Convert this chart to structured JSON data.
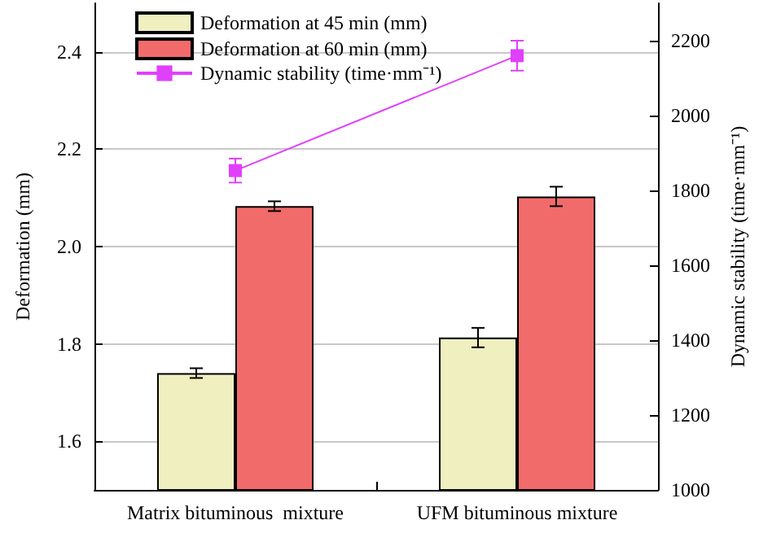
{
  "chart_data": {
    "type": "bar",
    "categories": [
      "Matrix bituminous  mixture",
      "UFM bituminous mixture"
    ],
    "series": [
      {
        "name": "Deformation at 45 min (mm)",
        "color": "#f0efc0",
        "values": [
          1.74,
          1.813
        ],
        "errors": [
          0.01,
          0.02
        ]
      },
      {
        "name": "Deformation at 60 min (mm)",
        "color": "#f26b6b",
        "values": [
          2.083,
          2.103
        ],
        "errors": [
          0.01,
          0.02
        ]
      },
      {
        "name": "Dynamic stability (time·mm⁻¹)",
        "type": "line",
        "axis": "y2",
        "color": "#e040fb",
        "marker": "square",
        "values": [
          1853,
          2160
        ],
        "errors": [
          32,
          40
        ]
      }
    ],
    "ylabel": "Deformation (mm)",
    "y2label": "Dynamic stability (time·mm⁻¹)",
    "ylim": [
      1.5,
      2.5
    ],
    "yticks": [
      {
        "value": 1.6,
        "label": "1.6"
      },
      {
        "value": 1.8,
        "label": "1.8"
      },
      {
        "value": 2.0,
        "label": "2.0"
      },
      {
        "value": 2.2,
        "label": "2.2"
      },
      {
        "value": 2.4,
        "label": "2.4"
      }
    ],
    "y2lim": [
      1000,
      2300
    ],
    "y2ticks": [
      1000,
      1200,
      1400,
      1600,
      1800,
      2000,
      2200
    ],
    "grid": "y",
    "legend": "top left"
  }
}
